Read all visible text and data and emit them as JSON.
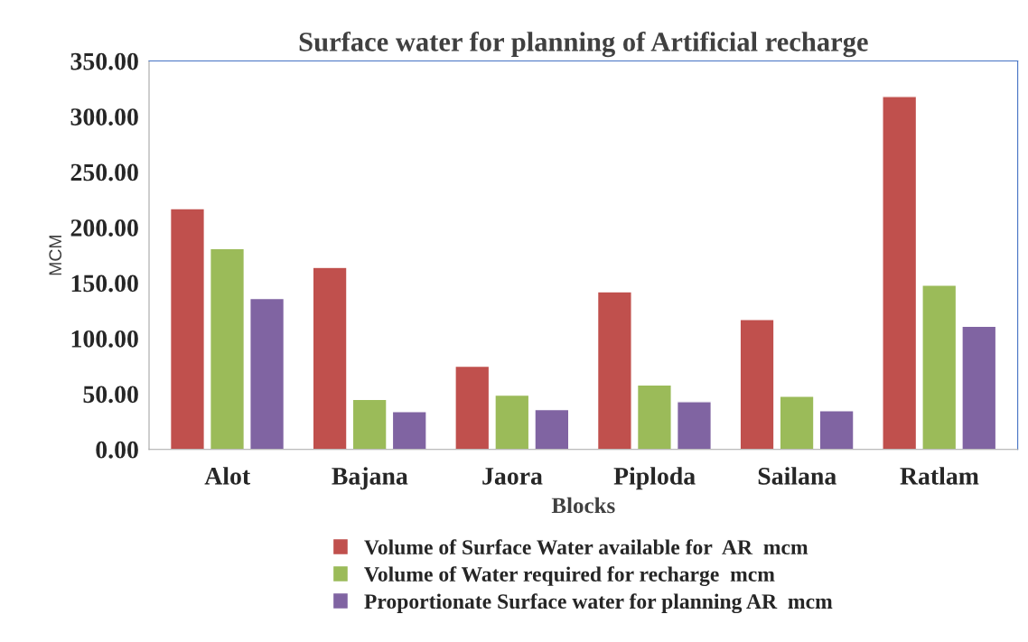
{
  "chart_data": {
    "type": "bar",
    "title": "Surface water for planning of Artificial recharge",
    "xlabel": "Blocks",
    "ylabel": "MCM",
    "categories": [
      "Alot",
      "Bajana",
      "Jaora",
      "Piploda",
      "Sailana",
      "Ratlam"
    ],
    "series": [
      {
        "name": "Volume of Surface Water available for  AR  mcm",
        "color": "#c0504d",
        "values": [
          217,
          164,
          75,
          142,
          117,
          318
        ]
      },
      {
        "name": "Volume of Water required for recharge  mcm",
        "color": "#9bbb59",
        "values": [
          181,
          45,
          49,
          58,
          48,
          148
        ]
      },
      {
        "name": "Proportionate Surface water for planning AR  mcm",
        "color": "#8064a2",
        "values": [
          136,
          34,
          36,
          43,
          35,
          111
        ]
      }
    ],
    "ylim": [
      0,
      350
    ],
    "yticks": [
      {
        "value": 0,
        "label": "0.00"
      },
      {
        "value": 50,
        "label": "50.00"
      },
      {
        "value": 100,
        "label": "100.00"
      },
      {
        "value": 150,
        "label": "150.00"
      },
      {
        "value": 200,
        "label": "200.00"
      },
      {
        "value": 250,
        "label": "250.00"
      },
      {
        "value": 300,
        "label": "300.00"
      },
      {
        "value": 350,
        "label": "350.00"
      }
    ],
    "grid": false,
    "legend": "bottom"
  }
}
